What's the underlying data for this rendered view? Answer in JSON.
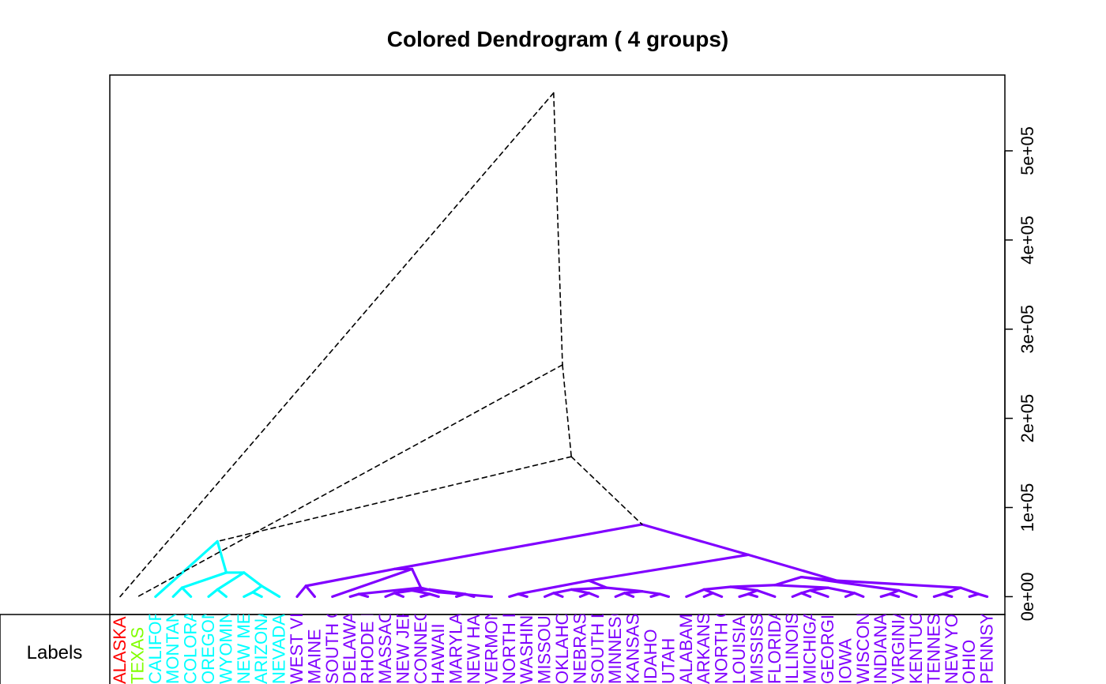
{
  "chart_data": {
    "type": "dendrogram",
    "title": "Colored Dendrogram ( 4  groups)",
    "y_axis": {
      "position": "right",
      "ticks": [
        0,
        100000,
        200000,
        300000,
        400000,
        500000
      ],
      "tick_labels": [
        "0e+00",
        "1e+05",
        "2e+05",
        "3e+05",
        "4e+05",
        "5e+05"
      ],
      "range": [
        -20000,
        585000
      ]
    },
    "colors": {
      "g1": "#ff0000",
      "g2": "#80ff00",
      "g3": "#00ffff",
      "g4": "#8000ff",
      "upper": "#000000"
    },
    "groups": [
      "g1",
      "g2",
      "g3",
      "g4"
    ],
    "leaves": [
      {
        "label": "ALASKA",
        "group": "g1"
      },
      {
        "label": "TEXAS",
        "group": "g2"
      },
      {
        "label": "CALIFORNIA",
        "group": "g3"
      },
      {
        "label": "MONTANA",
        "group": "g3"
      },
      {
        "label": "COLORADO",
        "group": "g3"
      },
      {
        "label": "OREGON",
        "group": "g3"
      },
      {
        "label": "WYOMING",
        "group": "g3"
      },
      {
        "label": "NEW MEXICO",
        "group": "g3"
      },
      {
        "label": "ARIZONA",
        "group": "g3"
      },
      {
        "label": "NEVADA",
        "group": "g3"
      },
      {
        "label": "WEST VIRGINIA",
        "group": "g4"
      },
      {
        "label": "MAINE",
        "group": "g4"
      },
      {
        "label": "SOUTH CAROLINA",
        "group": "g4"
      },
      {
        "label": "DELAWARE",
        "group": "g4"
      },
      {
        "label": "RHODE ISLAND",
        "group": "g4"
      },
      {
        "label": "MASSACHUSETTS",
        "group": "g4"
      },
      {
        "label": "NEW JERSEY",
        "group": "g4"
      },
      {
        "label": "CONNECTICUT",
        "group": "g4"
      },
      {
        "label": "HAWAII",
        "group": "g4"
      },
      {
        "label": "MARYLAND",
        "group": "g4"
      },
      {
        "label": "NEW HAMPSHIRE",
        "group": "g4"
      },
      {
        "label": "VERMONT",
        "group": "g4"
      },
      {
        "label": "NORTH DAKOTA",
        "group": "g4"
      },
      {
        "label": "WASHINGTON",
        "group": "g4"
      },
      {
        "label": "MISSOURI",
        "group": "g4"
      },
      {
        "label": "OKLAHOMA",
        "group": "g4"
      },
      {
        "label": "NEBRASKA",
        "group": "g4"
      },
      {
        "label": "SOUTH DAKOTA",
        "group": "g4"
      },
      {
        "label": "MINNESOTA",
        "group": "g4"
      },
      {
        "label": "KANSAS",
        "group": "g4"
      },
      {
        "label": "IDAHO",
        "group": "g4"
      },
      {
        "label": "UTAH",
        "group": "g4"
      },
      {
        "label": "ALABAMA",
        "group": "g4"
      },
      {
        "label": "ARKANSAS",
        "group": "g4"
      },
      {
        "label": "NORTH CAROLINA",
        "group": "g4"
      },
      {
        "label": "LOUISIANA",
        "group": "g4"
      },
      {
        "label": "MISSISSIPPI",
        "group": "g4"
      },
      {
        "label": "FLORIDA",
        "group": "g4"
      },
      {
        "label": "ILLINOIS",
        "group": "g4"
      },
      {
        "label": "MICHIGAN",
        "group": "g4"
      },
      {
        "label": "GEORGIA",
        "group": "g4"
      },
      {
        "label": "IOWA",
        "group": "g4"
      },
      {
        "label": "WISCONSIN",
        "group": "g4"
      },
      {
        "label": "INDIANA",
        "group": "g4"
      },
      {
        "label": "VIRGINIA",
        "group": "g4"
      },
      {
        "label": "KENTUCKY",
        "group": "g4"
      },
      {
        "label": "TENNESSEE",
        "group": "g4"
      },
      {
        "label": "NEW YORK",
        "group": "g4"
      },
      {
        "label": "OHIO",
        "group": "g4"
      },
      {
        "label": "PENNSYLVANIA",
        "group": "g4"
      }
    ],
    "merges": [
      {
        "left": [
          7
        ],
        "right": [
          8
        ],
        "height": 5000
      },
      {
        "left": [
          7,
          8
        ],
        "right": [
          9
        ],
        "height": 12000
      },
      {
        "left": [
          5
        ],
        "right": [
          6
        ],
        "height": 8000
      },
      {
        "left": [
          3
        ],
        "right": [
          4
        ],
        "height": 10000
      },
      {
        "left": [
          5,
          6
        ],
        "right": [
          7,
          8,
          9
        ],
        "height": 27000
      },
      {
        "left": [
          3,
          4
        ],
        "right": [
          5,
          6,
          7,
          8,
          9
        ],
        "height": 27000
      },
      {
        "left": [
          2
        ],
        "right": [
          3,
          4,
          5,
          6,
          7,
          8,
          9
        ],
        "height": 62000
      },
      {
        "left": [
          10
        ],
        "right": [
          11
        ],
        "height": 12000
      },
      {
        "left": [
          13
        ],
        "right": [
          14
        ],
        "height": 3000
      },
      {
        "left": [
          15
        ],
        "right": [
          16
        ],
        "height": 4000
      },
      {
        "left": [
          17
        ],
        "right": [
          18
        ],
        "height": 3000
      },
      {
        "left": [
          19
        ],
        "right": [
          20
        ],
        "height": 3000
      },
      {
        "left": [
          15,
          16
        ],
        "right": [
          17,
          18
        ],
        "height": 7000
      },
      {
        "left": [
          15,
          16,
          17,
          18
        ],
        "right": [
          19,
          20
        ],
        "height": 8000
      },
      {
        "left": [
          15,
          16,
          17,
          18,
          19,
          20
        ],
        "right": [
          21
        ],
        "height": 5000
      },
      {
        "left": [
          13,
          14
        ],
        "right": [
          15,
          16,
          17,
          18,
          19,
          20,
          21
        ],
        "height": 10000
      },
      {
        "left": [
          12
        ],
        "right": [
          13,
          14,
          15,
          16,
          17,
          18,
          19,
          20,
          21
        ],
        "height": 31000
      },
      {
        "left": [
          10,
          11
        ],
        "right": [
          12,
          13,
          14,
          15,
          16,
          17,
          18,
          19,
          20,
          21
        ],
        "height": 31000
      },
      {
        "left": [
          22
        ],
        "right": [
          23
        ],
        "height": 3000
      },
      {
        "left": [
          24
        ],
        "right": [
          25
        ],
        "height": 4000
      },
      {
        "left": [
          26
        ],
        "right": [
          27
        ],
        "height": 4000
      },
      {
        "left": [
          24,
          25
        ],
        "right": [
          26,
          27
        ],
        "height": 8000
      },
      {
        "left": [
          28
        ],
        "right": [
          29
        ],
        "height": 4000
      },
      {
        "left": [
          30
        ],
        "right": [
          31
        ],
        "height": 3000
      },
      {
        "left": [
          28,
          29
        ],
        "right": [
          30,
          31
        ],
        "height": 6000
      },
      {
        "left": [
          24,
          25,
          26,
          27
        ],
        "right": [
          28,
          29,
          30,
          31
        ],
        "height": 10000
      },
      {
        "left": [
          22,
          23
        ],
        "right": [
          24,
          25,
          26,
          27,
          28,
          29,
          30,
          31
        ],
        "height": 18000
      },
      {
        "left": [
          33
        ],
        "right": [
          34
        ],
        "height": 4000
      },
      {
        "left": [
          32
        ],
        "right": [
          33,
          34
        ],
        "height": 8000
      },
      {
        "left": [
          35
        ],
        "right": [
          36
        ],
        "height": 3000
      },
      {
        "left": [
          35,
          36
        ],
        "right": [
          37
        ],
        "height": 7000
      },
      {
        "left": [
          32,
          33,
          34
        ],
        "right": [
          35,
          36,
          37
        ],
        "height": 11000
      },
      {
        "left": [
          38
        ],
        "right": [
          39
        ],
        "height": 4000
      },
      {
        "left": [
          38,
          39
        ],
        "right": [
          40
        ],
        "height": 7000
      },
      {
        "left": [
          41
        ],
        "right": [
          42
        ],
        "height": 4000
      },
      {
        "left": [
          38,
          39,
          40
        ],
        "right": [
          41,
          42
        ],
        "height": 10000
      },
      {
        "left": [
          32,
          33,
          34,
          35,
          36,
          37
        ],
        "right": [
          38,
          39,
          40,
          41,
          42
        ],
        "height": 13000
      },
      {
        "left": [
          43
        ],
        "right": [
          44
        ],
        "height": 3000
      },
      {
        "left": [
          43,
          44
        ],
        "right": [
          45
        ],
        "height": 7000
      },
      {
        "left": [
          32,
          33,
          34,
          35,
          36,
          37,
          38,
          39,
          40,
          41,
          42
        ],
        "right": [
          43,
          44,
          45
        ],
        "height": 22000
      },
      {
        "left": [
          46
        ],
        "right": [
          47
        ],
        "height": 3000
      },
      {
        "left": [
          48
        ],
        "right": [
          49
        ],
        "height": 3000
      },
      {
        "left": [
          46,
          47
        ],
        "right": [
          48,
          49
        ],
        "height": 10000
      },
      {
        "left": [
          32,
          33,
          34,
          35,
          36,
          37,
          38,
          39,
          40,
          41,
          42,
          43,
          44,
          45
        ],
        "right": [
          46,
          47,
          48,
          49
        ],
        "height": 18000
      },
      {
        "left": [
          22,
          23,
          24,
          25,
          26,
          27,
          28,
          29,
          30,
          31
        ],
        "right": [
          32,
          33,
          34,
          35,
          36,
          37,
          38,
          39,
          40,
          41,
          42,
          43,
          44,
          45,
          46,
          47,
          48,
          49
        ],
        "height": 47000
      },
      {
        "left": [
          10,
          11,
          12,
          13,
          14,
          15,
          16,
          17,
          18,
          19,
          20,
          21
        ],
        "right": [
          22,
          23,
          24,
          25,
          26,
          27,
          28,
          29,
          30,
          31,
          32,
          33,
          34,
          35,
          36,
          37,
          38,
          39,
          40,
          41,
          42,
          43,
          44,
          45,
          46,
          47,
          48,
          49
        ],
        "height": 81000
      },
      {
        "left": [
          2,
          3,
          4,
          5,
          6,
          7,
          8,
          9
        ],
        "right": [
          10,
          11,
          12,
          13,
          14,
          15,
          16,
          17,
          18,
          19,
          20,
          21,
          22,
          23,
          24,
          25,
          26,
          27,
          28,
          29,
          30,
          31,
          32,
          33,
          34,
          35,
          36,
          37,
          38,
          39,
          40,
          41,
          42,
          43,
          44,
          45,
          46,
          47,
          48,
          49
        ],
        "height": 157000,
        "upper": true
      },
      {
        "left": [
          1
        ],
        "right": [
          2,
          3,
          4,
          5,
          6,
          7,
          8,
          9,
          10,
          11,
          12,
          13,
          14,
          15,
          16,
          17,
          18,
          19,
          20,
          21,
          22,
          23,
          24,
          25,
          26,
          27,
          28,
          29,
          30,
          31,
          32,
          33,
          34,
          35,
          36,
          37,
          38,
          39,
          40,
          41,
          42,
          43,
          44,
          45,
          46,
          47,
          48,
          49
        ],
        "height": 260000,
        "upper": true
      },
      {
        "left": [
          0
        ],
        "right": [
          1,
          2,
          3,
          4,
          5,
          6,
          7,
          8,
          9,
          10,
          11,
          12,
          13,
          14,
          15,
          16,
          17,
          18,
          19,
          20,
          21,
          22,
          23,
          24,
          25,
          26,
          27,
          28,
          29,
          30,
          31,
          32,
          33,
          34,
          35,
          36,
          37,
          38,
          39,
          40,
          41,
          42,
          43,
          44,
          45,
          46,
          47,
          48,
          49
        ],
        "height": 565000,
        "upper": true
      }
    ],
    "label_row_title": "Labels"
  }
}
